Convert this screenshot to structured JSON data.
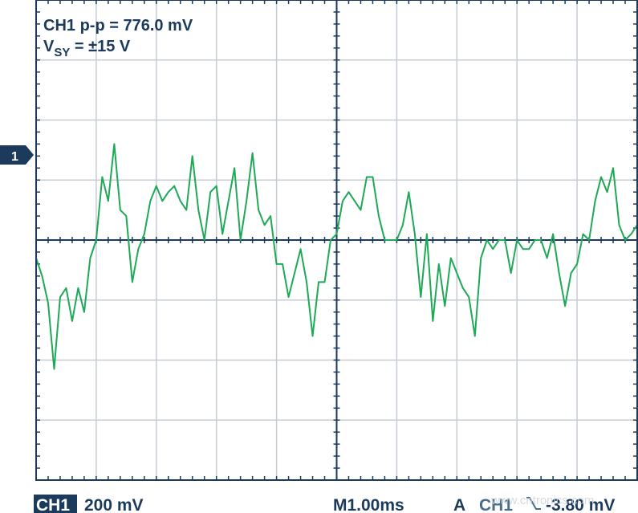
{
  "chart_data": {
    "type": "line",
    "annotations": [
      "CH1 p-p = 776.0 mV"
    ],
    "supply": {
      "text": "V",
      "subscript": "SY",
      "rest": " = ±15 V"
    },
    "channel_marker": "1",
    "color": "#1ea956",
    "grid": true,
    "xlim": [
      0,
      10
    ],
    "ylim": [
      -800,
      800
    ],
    "xticks": [
      0,
      1,
      2,
      3,
      4,
      5,
      6,
      7,
      8,
      9,
      10
    ],
    "yticks": [
      -800,
      -600,
      -400,
      -200,
      0,
      200,
      400,
      600,
      800
    ],
    "x": [
      0,
      0.1,
      0.2,
      0.3,
      0.4,
      0.5,
      0.6,
      0.7,
      0.8,
      0.9,
      1,
      1.1,
      1.2,
      1.3,
      1.4,
      1.5,
      1.6,
      1.7,
      1.8,
      1.9,
      2,
      2.1,
      2.2,
      2.3,
      2.4,
      2.5,
      2.6,
      2.7,
      2.8,
      2.9,
      3,
      3.1,
      3.2,
      3.3,
      3.4,
      3.5,
      3.6,
      3.7,
      3.8,
      3.9,
      4,
      4.1,
      4.2,
      4.3,
      4.4,
      4.5,
      4.6,
      4.7,
      4.8,
      4.9,
      5,
      5.1,
      5.2,
      5.3,
      5.4,
      5.5,
      5.6,
      5.7,
      5.8,
      5.9,
      6,
      6.1,
      6.2,
      6.3,
      6.4,
      6.5,
      6.6,
      6.7,
      6.8,
      6.9,
      7,
      7.1,
      7.2,
      7.3,
      7.4,
      7.5,
      7.6,
      7.7,
      7.8,
      7.9,
      8,
      8.1,
      8.2,
      8.3,
      8.4,
      8.5,
      8.6,
      8.7,
      8.8,
      8.9,
      9,
      9.1,
      9.2,
      9.3,
      9.4,
      9.5,
      9.6,
      9.7,
      9.8,
      9.9,
      10
    ],
    "values": [
      -60,
      -120,
      -210,
      -430,
      -190,
      -160,
      -270,
      -160,
      -240,
      -60,
      0,
      210,
      130,
      320,
      100,
      80,
      -140,
      -30,
      20,
      130,
      180,
      130,
      160,
      180,
      130,
      100,
      280,
      100,
      0,
      160,
      180,
      20,
      130,
      240,
      0,
      130,
      290,
      100,
      50,
      80,
      -80,
      -80,
      -190,
      -110,
      -30,
      -140,
      -320,
      -140,
      -140,
      0,
      20,
      130,
      160,
      130,
      100,
      210,
      210,
      80,
      0,
      0,
      0,
      50,
      160,
      20,
      -190,
      20,
      -270,
      -80,
      -220,
      -60,
      -110,
      -160,
      -190,
      -320,
      -60,
      0,
      -30,
      0,
      0,
      -110,
      0,
      -30,
      -30,
      0,
      0,
      -60,
      20,
      -110,
      -220,
      -110,
      -80,
      20,
      0,
      130,
      210,
      160,
      240,
      50,
      0,
      20,
      50
    ]
  },
  "status_bar": {
    "channel": "CH1",
    "scale": "200 mV",
    "timebase": "M1.00ms",
    "trigger_mode": "A",
    "trigger_source": "CH1",
    "trigger_level": "-3.80 mV",
    "watermark": "www.cntronics.com"
  }
}
